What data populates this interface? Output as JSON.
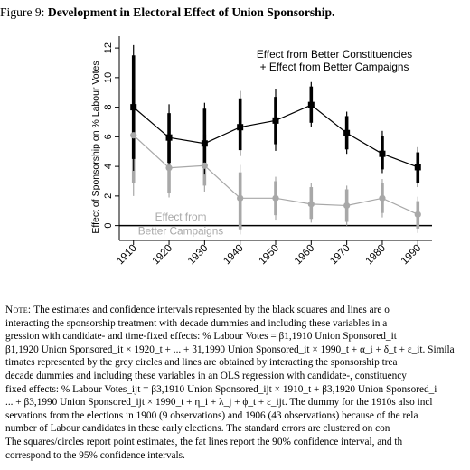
{
  "figure": {
    "label": "Figure 9:",
    "title": "Development in Electoral Effect of Union Sponsorship."
  },
  "chart_data": {
    "type": "scatter",
    "title": "",
    "xlabel": "",
    "ylabel": "Effect of Sponsorship on % Labour Votes",
    "ylim": [
      -1,
      12.8
    ],
    "xlim": [
      1906,
      1994
    ],
    "categories": [
      "1910",
      "1920",
      "1930",
      "1940",
      "1950",
      "1960",
      "1970",
      "1980",
      "1990"
    ],
    "yticks": [
      "0",
      "2",
      "4",
      "6",
      "8",
      "10",
      "12"
    ],
    "ytick_values": [
      0,
      2,
      4,
      6,
      8,
      10,
      12
    ],
    "legend": [
      "Effect from Better Constituencies",
      "+ Effect from Better Campaigns"
    ],
    "series": [
      {
        "name": "Effect from Better Constituencies + Effect from Better Campaigns",
        "color": "#000000",
        "marker": "square",
        "x": [
          1910,
          1920,
          1930,
          1940,
          1950,
          1960,
          1970,
          1980,
          1990
        ],
        "values": [
          8.0,
          5.95,
          5.55,
          6.65,
          7.1,
          8.15,
          6.25,
          4.85,
          3.95
        ],
        "ci90": [
          [
            4.5,
            11.5
          ],
          [
            4.25,
            7.6
          ],
          [
            3.9,
            7.9
          ],
          [
            5.1,
            8.6
          ],
          [
            5.5,
            8.7
          ],
          [
            6.95,
            9.4
          ],
          [
            5.15,
            7.4
          ],
          [
            3.8,
            6.05
          ],
          [
            2.9,
            4.95
          ]
        ],
        "ci95": [
          [
            3.7,
            12.2
          ],
          [
            3.85,
            8.2
          ],
          [
            3.45,
            8.3
          ],
          [
            4.7,
            9.1
          ],
          [
            5.05,
            9.25
          ],
          [
            6.65,
            9.7
          ],
          [
            4.85,
            7.7
          ],
          [
            3.55,
            6.4
          ],
          [
            2.6,
            5.3
          ]
        ]
      },
      {
        "name": "Effect from Better Campaigns",
        "color": "#a8a8a8",
        "marker": "circle",
        "x": [
          1910,
          1920,
          1930,
          1940,
          1950,
          1960,
          1970,
          1980,
          1990
        ],
        "values": [
          6.1,
          3.9,
          4.05,
          1.85,
          1.85,
          1.45,
          1.35,
          1.85,
          0.75
        ],
        "ci90": [
          [
            2.9,
            9.2
          ],
          [
            2.2,
            5.6
          ],
          [
            2.7,
            6.15
          ],
          [
            -0.25,
            3.6
          ],
          [
            0.7,
            3.0
          ],
          [
            0.45,
            2.6
          ],
          [
            0.25,
            2.45
          ],
          [
            0.85,
            2.85
          ],
          [
            -0.2,
            1.65
          ]
        ],
        "ci95": [
          [
            2.0,
            10.1
          ],
          [
            1.9,
            6.1
          ],
          [
            2.3,
            6.5
          ],
          [
            -0.6,
            4.1
          ],
          [
            0.4,
            3.3
          ],
          [
            0.2,
            2.85
          ],
          [
            0.0,
            2.7
          ],
          [
            0.55,
            3.15
          ],
          [
            -0.5,
            1.95
          ]
        ]
      }
    ],
    "annotations": [
      "Effect from",
      "Better Campaigns"
    ],
    "grid": false
  },
  "note": {
    "label": "Note:",
    "lines": [
      "The estimates and confidence intervals represented by the black squares and lines are o",
      "interacting the sponsorship treatment with decade dummies and including these variables in a",
      "gression with candidate- and time-fixed effects: % Labour Votes",
      "β1,1920 Union Sponsored_it × 1920_t + ... + β1,1990 Union Sponsored_it × 1990_t + α_i + δ_t + ε_it. Simila",
      "timates represented by the grey circles and lines are obtained by interacting the sponsorship trea",
      "decade dummies and including these variables in an OLS regression with candidate-, constituency",
      "fixed effects: % Labour Votes_ijt = β3,1910 Union Sponsored_ijt × 1910_t + β3,1920 Union Sponsored_i",
      "... + β3,1990 Union Sponsored_ijt × 1990_t + η_i + λ_j + ϕ_t + ε_ijt. The dummy for the 1910s also incl",
      "servations from the elections in 1900 (9 observations) and 1906 (43 observations) because of the rela",
      "number of Labour candidates in these early elections. The standard errors are clustered on con",
      "The squares/circles report point estimates, the fat lines report the 90% confidence interval, and th",
      "correspond to the 95% confidence intervals."
    ],
    "eq1_rhs": "β1,1910 Union Sponsored_it"
  }
}
